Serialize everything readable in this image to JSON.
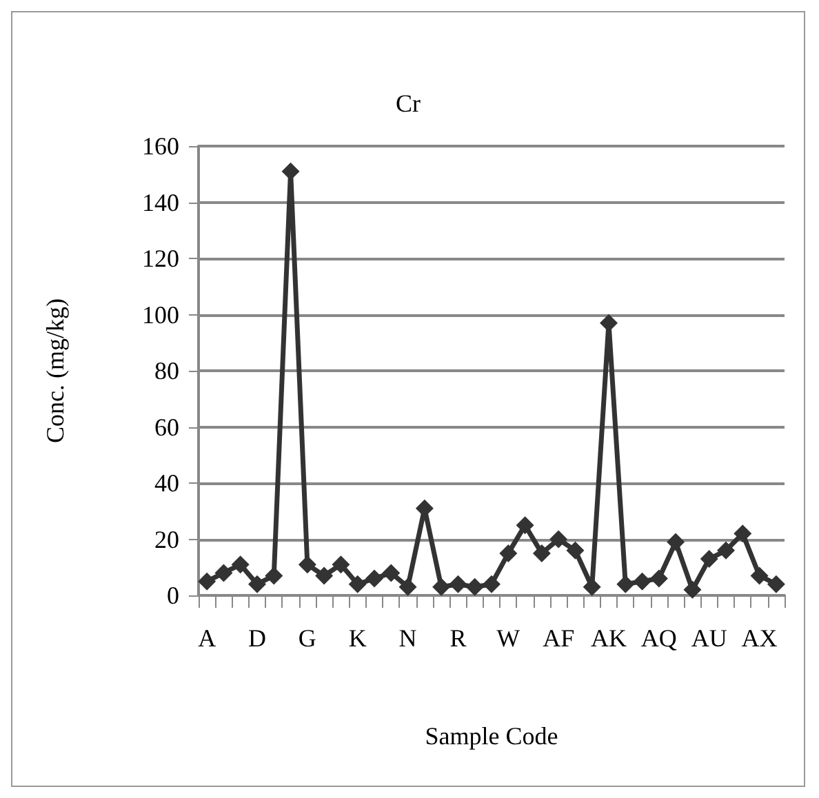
{
  "chart_data": {
    "type": "line",
    "title": "Cr",
    "xlabel": "Sample Code",
    "ylabel": "Conc. (mg/kg)",
    "categories": [
      "A",
      null,
      null,
      "D",
      null,
      null,
      "G",
      null,
      null,
      "K",
      null,
      null,
      "N",
      null,
      null,
      "R",
      null,
      null,
      "W",
      null,
      null,
      "AF",
      null,
      null,
      "AK",
      null,
      null,
      "AQ",
      null,
      null,
      "AU",
      null,
      null,
      "AX",
      null
    ],
    "series": [
      {
        "color": "#333333",
        "values": [
          5,
          8,
          11,
          4,
          7,
          151,
          11,
          7,
          11,
          4,
          6,
          8,
          3,
          31,
          3,
          4,
          3,
          4,
          15,
          25,
          15,
          20,
          16,
          3,
          97,
          4,
          5,
          6,
          19,
          2,
          13,
          16,
          22,
          7,
          4
        ]
      }
    ],
    "ylim": [
      0,
      160
    ],
    "yticks": [
      0,
      20,
      40,
      60,
      80,
      100,
      120,
      140,
      160
    ],
    "grid": "y",
    "marker": "diamond",
    "line_style": "solid"
  }
}
